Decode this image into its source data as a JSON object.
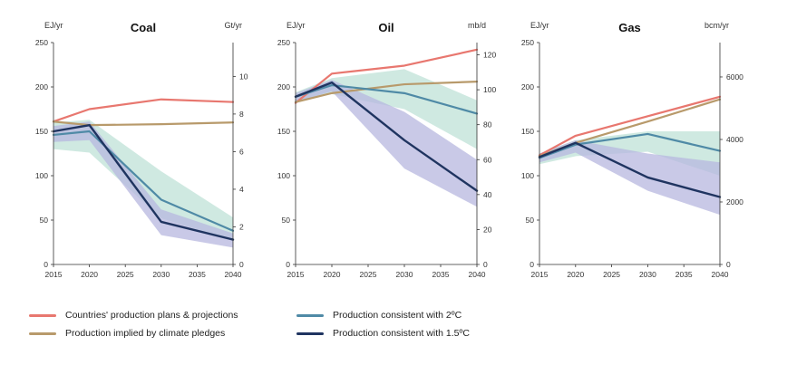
{
  "legend": {
    "plans": "Countries' production plans & projections",
    "pledges": "Production implied by climate pledges",
    "c2": "Production consistent with 2ºC",
    "c15": "Production consistent with 1.5ºC"
  },
  "colors": {
    "plans": "#e8776f",
    "pledges": "#b89a6b",
    "c2": "#4f8aa6",
    "c15": "#1f3460",
    "band2": "#c7e5dc",
    "band15": "#b7b7df",
    "axis": "#333333"
  },
  "chart_data": [
    {
      "type": "line",
      "title": "Coal",
      "left_unit": "EJ/yr",
      "right_unit": "Gt/yr",
      "x_ticks": [
        2015,
        2020,
        2025,
        2030,
        2035,
        2040
      ],
      "xlim": [
        2015,
        2040
      ],
      "left_ylim": [
        0,
        250
      ],
      "left_ticks": [
        0,
        50,
        100,
        150,
        200,
        250
      ],
      "right_ylim": [
        0,
        11.8
      ],
      "right_ticks": [
        0,
        2,
        4,
        6,
        8,
        10
      ],
      "x": [
        2015,
        2020,
        2030,
        2040
      ],
      "series": [
        {
          "name": "Countries' production plans & projections",
          "values": [
            161,
            175,
            186,
            183
          ]
        },
        {
          "name": "Production implied by climate pledges",
          "values": [
            161,
            157,
            158,
            160
          ]
        },
        {
          "name": "Production consistent with 2ºC",
          "values": [
            146,
            150,
            73,
            38
          ]
        },
        {
          "name": "Production consistent with 1.5ºC",
          "values": [
            150,
            157,
            48,
            28
          ]
        }
      ],
      "bands": [
        {
          "name": "2ºC range",
          "low": [
            130,
            126,
            52,
            27
          ],
          "high": [
            160,
            163,
            105,
            53
          ]
        },
        {
          "name": "1.5ºC range",
          "low": [
            138,
            140,
            33,
            19
          ],
          "high": [
            156,
            161,
            62,
            35
          ]
        }
      ]
    },
    {
      "type": "line",
      "title": "Oil",
      "left_unit": "EJ/yr",
      "right_unit": "mb/d",
      "x_ticks": [
        2015,
        2020,
        2025,
        2030,
        2035,
        2040
      ],
      "xlim": [
        2015,
        2040
      ],
      "left_ylim": [
        0,
        250
      ],
      "left_ticks": [
        0,
        50,
        100,
        150,
        200,
        250
      ],
      "right_ylim": [
        0,
        127
      ],
      "right_ticks": [
        0,
        20,
        40,
        60,
        80,
        100,
        120
      ],
      "x": [
        2015,
        2020,
        2030,
        2040
      ],
      "series": [
        {
          "name": "Countries' production plans & projections",
          "values": [
            182,
            215,
            224,
            242
          ]
        },
        {
          "name": "Production implied by climate pledges",
          "values": [
            183,
            193,
            203,
            206
          ]
        },
        {
          "name": "Production consistent with 2ºC",
          "values": [
            189,
            202,
            193,
            170
          ]
        },
        {
          "name": "Production consistent with 1.5ºC",
          "values": [
            189,
            205,
            140,
            83
          ]
        }
      ],
      "bands": [
        {
          "name": "2ºC range",
          "low": [
            184,
            192,
            175,
            130
          ],
          "high": [
            194,
            210,
            220,
            185
          ]
        },
        {
          "name": "1.5ºC range",
          "low": [
            183,
            195,
            108,
            65
          ],
          "high": [
            193,
            208,
            172,
            118
          ]
        }
      ]
    },
    {
      "type": "line",
      "title": "Gas",
      "left_unit": "EJ/yr",
      "right_unit": "bcm/yr",
      "x_ticks": [
        2015,
        2020,
        2025,
        2030,
        2035,
        2040
      ],
      "xlim": [
        2015,
        2040
      ],
      "left_ylim": [
        0,
        250
      ],
      "left_ticks": [
        0,
        50,
        100,
        150,
        200,
        250
      ],
      "right_ylim": [
        0,
        7100
      ],
      "right_ticks": [
        0,
        2000,
        4000,
        6000
      ],
      "x": [
        2015,
        2020,
        2030,
        2040
      ],
      "series": [
        {
          "name": "Countries' production plans & projections",
          "values": [
            123,
            145,
            167,
            189
          ]
        },
        {
          "name": "Production implied by climate pledges",
          "values": [
            122,
            137,
            161,
            186
          ]
        },
        {
          "name": "Production consistent with 2ºC",
          "values": [
            120,
            135,
            147,
            128
          ]
        },
        {
          "name": "Production consistent with 1.5ºC",
          "values": [
            121,
            137,
            98,
            76
          ]
        }
      ],
      "bands": [
        {
          "name": "2ºC range",
          "low": [
            113,
            122,
            127,
            100
          ],
          "high": [
            125,
            140,
            150,
            150
          ]
        },
        {
          "name": "1.5ºC range",
          "low": [
            115,
            126,
            83,
            56
          ],
          "high": [
            125,
            140,
            125,
            115
          ]
        }
      ]
    }
  ]
}
